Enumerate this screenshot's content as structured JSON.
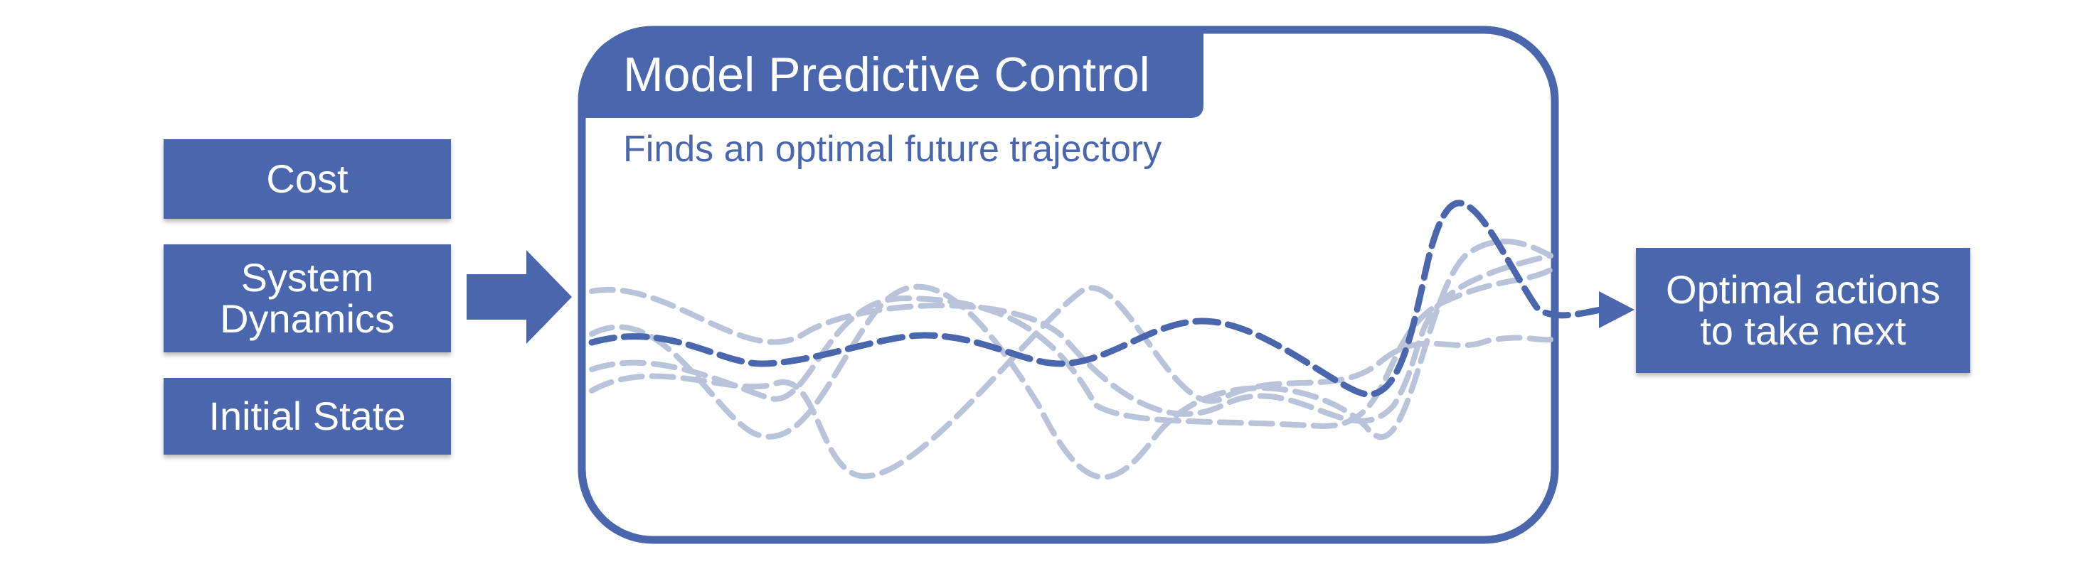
{
  "inputs": {
    "cost": "Cost",
    "dynamics_line1": "System",
    "dynamics_line2": "Dynamics",
    "initial_state": "Initial State"
  },
  "mpc": {
    "title": "Model Predictive Control",
    "subtitle": "Finds an optimal future trajectory"
  },
  "output": {
    "line1": "Optimal actions",
    "line2": "to take next"
  },
  "colors": {
    "primary": "#4a67ad",
    "faded_trajectory": "#b9c3da",
    "text_on_primary": "#ffffff"
  }
}
